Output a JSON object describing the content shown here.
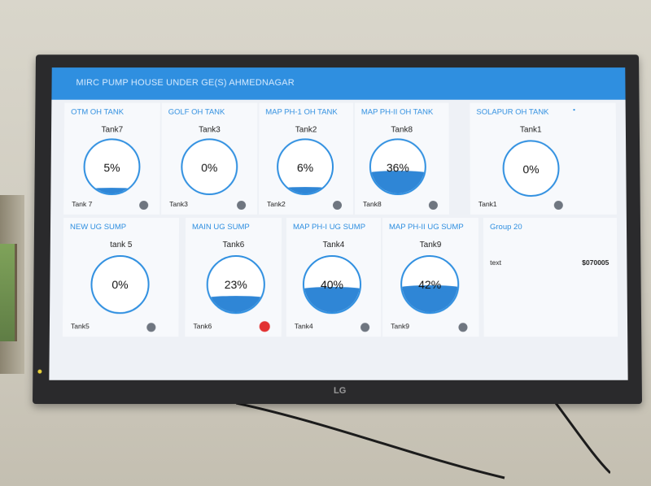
{
  "header": {
    "title": "MIRC PUMP HOUSE UNDER GE(S) AHMEDNAGAR"
  },
  "brand": "LG",
  "row1": [
    {
      "group": "OTM OH TANK",
      "tank": "Tank7",
      "level": 5,
      "percent_label": "5%",
      "footer": "Tank 7",
      "alarm": false
    },
    {
      "group": "GOLF OH TANK",
      "tank": "Tank3",
      "level": 0,
      "percent_label": "0%",
      "footer": "Tank3",
      "alarm": false
    },
    {
      "group": "MAP PH-1 OH TANK",
      "tank": "Tank2",
      "level": 6,
      "percent_label": "6%",
      "footer": "Tank2",
      "alarm": false
    },
    {
      "group": "MAP PH-II OH TANK",
      "tank": "Tank8",
      "level": 36,
      "percent_label": "36%",
      "footer": "Tank8",
      "alarm": false
    },
    {
      "group": "SOLAPUR OH TANK",
      "tank": "Tank1",
      "level": 0,
      "percent_label": "0%",
      "footer": "Tank1",
      "alarm": false
    }
  ],
  "row2": [
    {
      "group": "NEW UG SUMP",
      "tank": "tank 5",
      "level": 0,
      "percent_label": "0%",
      "footer": "Tank5",
      "alarm": false
    },
    {
      "group": "MAIN UG SUMP",
      "tank": "Tank6",
      "level": 23,
      "percent_label": "23%",
      "footer": "Tank6",
      "alarm": true
    },
    {
      "group": "MAP PH-I UG SUMP",
      "tank": "Tank4",
      "level": 40,
      "percent_label": "40%",
      "footer": "Tank4",
      "alarm": false
    },
    {
      "group": "MAP PH-II UG SUMP",
      "tank": "Tank9",
      "level": 42,
      "percent_label": "42%",
      "footer": "Tank9",
      "alarm": false
    }
  ],
  "group20": {
    "title": "Group 20",
    "label": "text",
    "value": "$070005"
  },
  "colors": {
    "accent": "#2f8fe0",
    "water": "#2f86d6",
    "alarm": "#e23232",
    "status_idle": "#6f7680"
  }
}
